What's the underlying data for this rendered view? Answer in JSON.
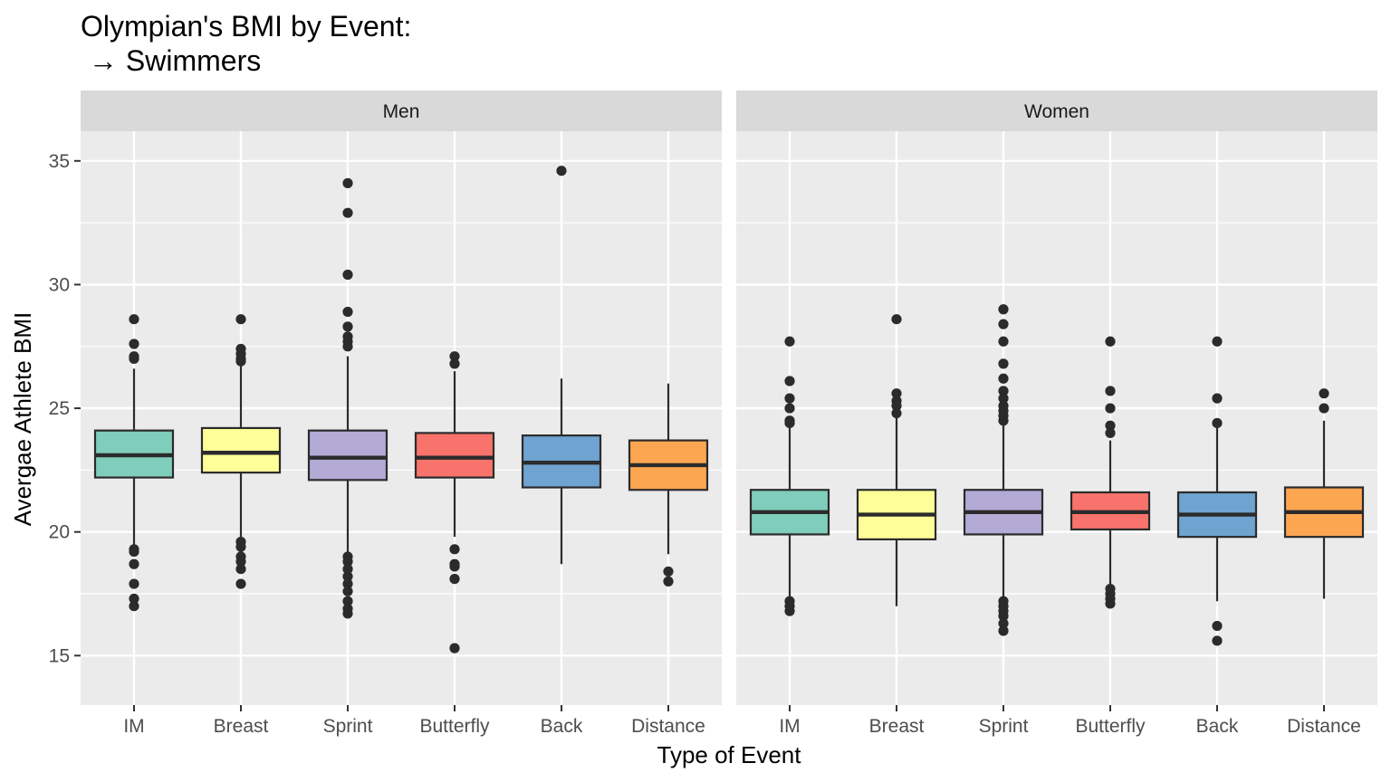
{
  "chart_data": {
    "type": "boxplot",
    "title": "Olympian's BMI by Event:",
    "subtitle": "→ Swimmers",
    "xlabel": "Type of Event",
    "ylabel": "Avergae Athlete BMI",
    "ylim": [
      13,
      36.2
    ],
    "yticks": [
      15,
      20,
      25,
      30,
      35
    ],
    "grid": true,
    "legend": "none",
    "categories": [
      "IM",
      "Breast",
      "Sprint",
      "Butterfly",
      "Back",
      "Distance"
    ],
    "colors": [
      "#7fcdbb",
      "#ffff99",
      "#b3aad6",
      "#f8736c",
      "#6fa3d0",
      "#fda652"
    ],
    "facets": [
      {
        "name": "Men",
        "boxes": [
          {
            "event": "IM",
            "whisker_low": 19.4,
            "q1": 22.2,
            "median": 23.1,
            "q3": 24.1,
            "whisker_high": 26.6,
            "outliers": [
              28.6,
              27.6,
              27.1,
              27.0,
              19.3,
              19.2,
              18.7,
              17.9,
              17.3,
              17.0
            ]
          },
          {
            "event": "Breast",
            "whisker_low": 19.8,
            "q1": 22.4,
            "median": 23.2,
            "q3": 24.2,
            "whisker_high": 26.8,
            "outliers": [
              28.6,
              27.4,
              27.2,
              27.0,
              26.9,
              19.6,
              19.4,
              19.0,
              18.8,
              18.5,
              17.9
            ]
          },
          {
            "event": "Sprint",
            "whisker_low": 19.1,
            "q1": 22.1,
            "median": 23.0,
            "q3": 24.1,
            "whisker_high": 27.1,
            "outliers": [
              34.1,
              32.9,
              30.4,
              28.9,
              28.3,
              27.9,
              27.7,
              27.5,
              19.0,
              18.8,
              18.5,
              18.2,
              17.9,
              17.6,
              17.2,
              16.9,
              16.7
            ]
          },
          {
            "event": "Butterfly",
            "whisker_low": 19.8,
            "q1": 22.2,
            "median": 23.0,
            "q3": 24.0,
            "whisker_high": 26.5,
            "outliers": [
              27.1,
              26.8,
              19.3,
              18.7,
              18.6,
              18.1,
              15.3
            ]
          },
          {
            "event": "Back",
            "whisker_low": 18.7,
            "q1": 21.8,
            "median": 22.8,
            "q3": 23.9,
            "whisker_high": 26.2,
            "outliers": [
              34.6
            ]
          },
          {
            "event": "Distance",
            "whisker_low": 19.1,
            "q1": 21.7,
            "median": 22.7,
            "q3": 23.7,
            "whisker_high": 26.0,
            "outliers": [
              18.4,
              18.0
            ]
          }
        ]
      },
      {
        "name": "Women",
        "boxes": [
          {
            "event": "IM",
            "whisker_low": 17.3,
            "q1": 19.9,
            "median": 20.8,
            "q3": 21.7,
            "whisker_high": 24.3,
            "outliers": [
              27.7,
              26.1,
              25.4,
              25.0,
              24.5,
              24.4,
              17.2,
              17.0,
              16.8
            ]
          },
          {
            "event": "Breast",
            "whisker_low": 17.0,
            "q1": 19.7,
            "median": 20.7,
            "q3": 21.7,
            "whisker_high": 24.7,
            "outliers": [
              28.6,
              25.6,
              25.3,
              25.1,
              24.8
            ]
          },
          {
            "event": "Sprint",
            "whisker_low": 17.3,
            "q1": 19.9,
            "median": 20.8,
            "q3": 21.7,
            "whisker_high": 24.4,
            "outliers": [
              29.0,
              28.4,
              27.7,
              26.8,
              26.2,
              25.7,
              25.4,
              25.1,
              24.9,
              24.7,
              24.5,
              17.2,
              17.0,
              16.8,
              16.6,
              16.3,
              16.0
            ]
          },
          {
            "event": "Butterfly",
            "whisker_low": 17.9,
            "q1": 20.1,
            "median": 20.8,
            "q3": 21.6,
            "whisker_high": 23.7,
            "outliers": [
              27.7,
              25.7,
              25.0,
              24.3,
              24.0,
              17.7,
              17.5,
              17.3,
              17.1
            ]
          },
          {
            "event": "Back",
            "whisker_low": 17.2,
            "q1": 19.8,
            "median": 20.7,
            "q3": 21.6,
            "whisker_high": 24.3,
            "outliers": [
              27.7,
              25.4,
              24.4,
              16.2,
              15.6
            ]
          },
          {
            "event": "Distance",
            "whisker_low": 17.3,
            "q1": 19.8,
            "median": 20.8,
            "q3": 21.8,
            "whisker_high": 24.5,
            "outliers": [
              25.6,
              25.0
            ]
          }
        ]
      }
    ]
  }
}
